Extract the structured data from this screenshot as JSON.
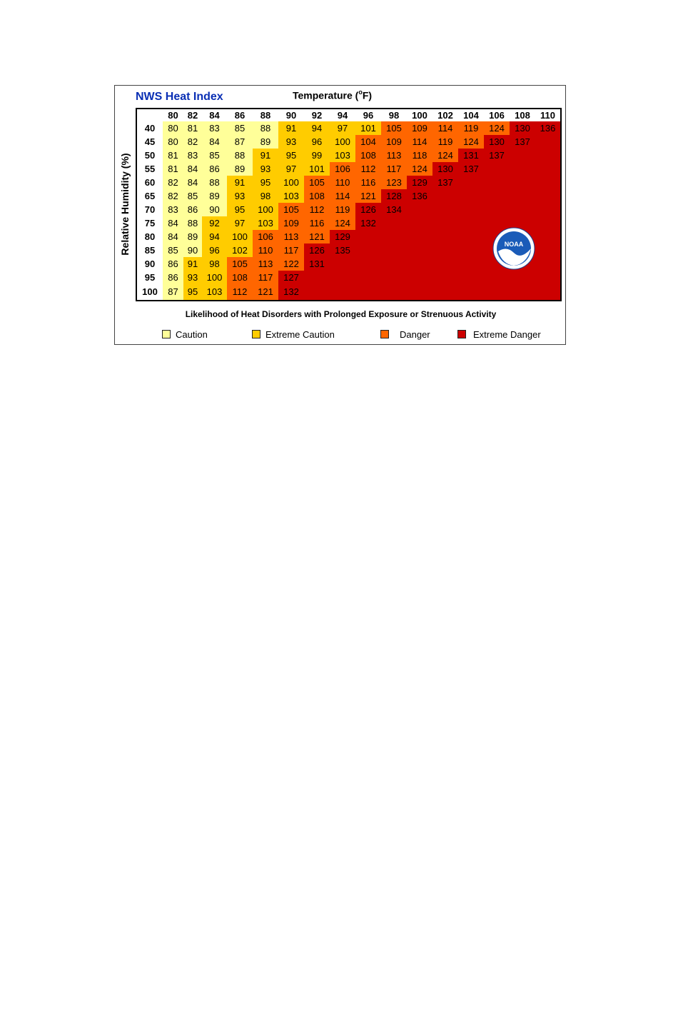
{
  "title": "NWS Heat Index",
  "xlabel": "Temperature (",
  "xlabel_degree": "o",
  "xlabel_unit": "F)",
  "ylabel": "Relative Humidity (%)",
  "footnote": "Likelihood of Heat Disorders with Prolonged Exposure or Strenuous Activity",
  "logo": {
    "text": "NOAA"
  },
  "legend": [
    {
      "label": "Caution",
      "color": "#ffff99"
    },
    {
      "label": "Extreme Caution",
      "color": "#ffcc00"
    },
    {
      "label": "Danger",
      "color": "#ff6600"
    },
    {
      "label": "Extreme Danger",
      "color": "#cc0000"
    }
  ],
  "chart_data": {
    "type": "heatmap",
    "title": "NWS Heat Index",
    "xlabel": "Temperature (°F)",
    "ylabel": "Relative Humidity (%)",
    "x": [
      80,
      82,
      84,
      86,
      88,
      90,
      92,
      94,
      96,
      98,
      100,
      102,
      104,
      106,
      108,
      110
    ],
    "y": [
      40,
      45,
      50,
      55,
      60,
      65,
      70,
      75,
      80,
      85,
      90,
      95,
      100
    ],
    "values": [
      [
        80,
        81,
        83,
        85,
        88,
        91,
        94,
        97,
        101,
        105,
        109,
        114,
        119,
        124,
        130,
        136
      ],
      [
        80,
        82,
        84,
        87,
        89,
        93,
        96,
        100,
        104,
        109,
        114,
        119,
        124,
        130,
        137,
        null
      ],
      [
        81,
        83,
        85,
        88,
        91,
        95,
        99,
        103,
        108,
        113,
        118,
        124,
        131,
        137,
        null,
        null
      ],
      [
        81,
        84,
        86,
        89,
        93,
        97,
        101,
        106,
        112,
        117,
        124,
        130,
        137,
        null,
        null,
        null
      ],
      [
        82,
        84,
        88,
        91,
        95,
        100,
        105,
        110,
        116,
        123,
        129,
        137,
        null,
        null,
        null,
        null
      ],
      [
        82,
        85,
        89,
        93,
        98,
        103,
        108,
        114,
        121,
        128,
        136,
        null,
        null,
        null,
        null,
        null
      ],
      [
        83,
        86,
        90,
        95,
        100,
        105,
        112,
        119,
        126,
        134,
        null,
        null,
        null,
        null,
        null,
        null
      ],
      [
        84,
        88,
        92,
        97,
        103,
        109,
        116,
        124,
        132,
        null,
        null,
        null,
        null,
        null,
        null,
        null
      ],
      [
        84,
        89,
        94,
        100,
        106,
        113,
        121,
        129,
        null,
        null,
        null,
        null,
        null,
        null,
        null,
        null
      ],
      [
        85,
        90,
        96,
        102,
        110,
        117,
        126,
        135,
        null,
        null,
        null,
        null,
        null,
        null,
        null,
        null
      ],
      [
        86,
        91,
        98,
        105,
        113,
        122,
        131,
        null,
        null,
        null,
        null,
        null,
        null,
        null,
        null,
        null
      ],
      [
        86,
        93,
        100,
        108,
        117,
        127,
        null,
        null,
        null,
        null,
        null,
        null,
        null,
        null,
        null,
        null
      ],
      [
        87,
        95,
        103,
        112,
        121,
        132,
        null,
        null,
        null,
        null,
        null,
        null,
        null,
        null,
        null,
        null
      ]
    ],
    "categories_by_color": {
      "Caution": [
        80,
        90
      ],
      "Extreme Caution": [
        91,
        103
      ],
      "Danger": [
        104,
        124
      ],
      "Extreme Danger": [
        125,
        137
      ]
    }
  }
}
